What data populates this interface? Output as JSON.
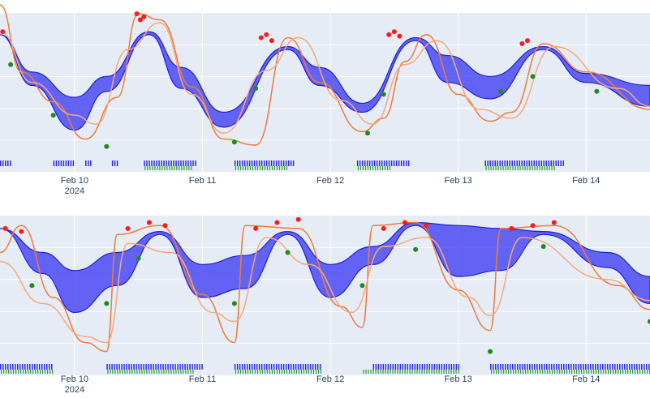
{
  "colors": {
    "plot_bg": "#e5ecf6",
    "grid": "#ffffff",
    "band_fill": "#4b4bf5",
    "band_edge": "#1f1fd6",
    "line_a": "#f07a3c",
    "line_b": "#f8a878",
    "peak_marker": "#ff1a1a",
    "trough_marker": "#1e8a1e",
    "rug_blue": "#2a2ae8",
    "rug_green": "#2ca02c"
  },
  "chart_data": [
    {
      "type": "area",
      "x_axis": {
        "type": "date",
        "range": [
          "2024-02-09T10:00",
          "2024-02-14T12:00"
        ],
        "tick_labels": [
          "Feb 10\n2024",
          "Feb 11",
          "Feb 12",
          "Feb 13",
          "Feb 14"
        ],
        "tick_dates": [
          "2024-02-10",
          "2024-02-11",
          "2024-02-12",
          "2024-02-13",
          "2024-02-14"
        ]
      },
      "y_axis": {
        "range": [
          0,
          1
        ],
        "tick_labels_shown": false
      },
      "grid": true,
      "series": [
        {
          "kind": "band",
          "points": [
            [
              "2024-02-09T10:00",
              0.8,
              0.8
            ],
            [
              "2024-02-09T16:00",
              0.46,
              0.55
            ],
            [
              "2024-02-10T00:00",
              0.16,
              0.38
            ],
            [
              "2024-02-10T06:00",
              0.42,
              0.52
            ],
            [
              "2024-02-10T14:00",
              0.8,
              0.82
            ],
            [
              "2024-02-10T20:00",
              0.44,
              0.58
            ],
            [
              "2024-02-11T04:00",
              0.18,
              0.28
            ],
            [
              "2024-02-11T16:00",
              0.7,
              0.72
            ],
            [
              "2024-02-11T22:00",
              0.46,
              0.58
            ],
            [
              "2024-02-12T06:00",
              0.28,
              0.34
            ],
            [
              "2024-02-12T16:00",
              0.76,
              0.78
            ],
            [
              "2024-02-12T22:00",
              0.48,
              0.66
            ],
            [
              "2024-02-13T06:00",
              0.37,
              0.52
            ],
            [
              "2024-02-13T16:00",
              0.7,
              0.72
            ],
            [
              "2024-02-14T00:00",
              0.48,
              0.54
            ],
            [
              "2024-02-14T12:00",
              0.32,
              0.46
            ]
          ]
        },
        {
          "kind": "line_a",
          "points": [
            [
              "2024-02-09T10:00",
              1.0
            ],
            [
              "2024-02-09T14:00",
              0.55
            ],
            [
              "2024-02-09T20:00",
              0.35
            ],
            [
              "2024-02-10T02:00",
              0.1
            ],
            [
              "2024-02-10T08:00",
              0.38
            ],
            [
              "2024-02-10T12:00",
              0.94
            ],
            [
              "2024-02-10T16:00",
              0.9
            ],
            [
              "2024-02-10T22:00",
              0.45
            ],
            [
              "2024-02-11T04:00",
              0.1
            ],
            [
              "2024-02-11T10:00",
              0.06
            ],
            [
              "2024-02-11T16:00",
              0.78
            ],
            [
              "2024-02-11T22:00",
              0.48
            ],
            [
              "2024-02-12T06:00",
              0.15
            ],
            [
              "2024-02-12T10:00",
              0.24
            ],
            [
              "2024-02-12T14:00",
              0.62
            ],
            [
              "2024-02-12T18:00",
              0.8
            ],
            [
              "2024-02-13T00:00",
              0.4
            ],
            [
              "2024-02-13T06:00",
              0.22
            ],
            [
              "2024-02-13T10:00",
              0.28
            ],
            [
              "2024-02-13T16:00",
              0.74
            ],
            [
              "2024-02-14T00:00",
              0.55
            ],
            [
              "2024-02-14T12:00",
              0.3
            ]
          ]
        },
        {
          "kind": "line_b",
          "points": [
            [
              "2024-02-09T10:00",
              0.82
            ],
            [
              "2024-02-09T16:00",
              0.48
            ],
            [
              "2024-02-10T00:00",
              0.26
            ],
            [
              "2024-02-10T04:00",
              0.2
            ],
            [
              "2024-02-10T10:00",
              0.7
            ],
            [
              "2024-02-10T16:00",
              0.88
            ],
            [
              "2024-02-10T22:00",
              0.4
            ],
            [
              "2024-02-11T04:00",
              0.14
            ],
            [
              "2024-02-11T12:00",
              0.56
            ],
            [
              "2024-02-11T18:00",
              0.78
            ],
            [
              "2024-02-12T02:00",
              0.36
            ],
            [
              "2024-02-12T08:00",
              0.2
            ],
            [
              "2024-02-12T14:00",
              0.6
            ],
            [
              "2024-02-12T20:00",
              0.76
            ],
            [
              "2024-02-13T04:00",
              0.3
            ],
            [
              "2024-02-13T10:00",
              0.24
            ],
            [
              "2024-02-13T18:00",
              0.72
            ],
            [
              "2024-02-14T06:00",
              0.44
            ],
            [
              "2024-02-14T12:00",
              0.32
            ]
          ]
        },
        {
          "kind": "peaks",
          "points": [
            [
              "2024-02-09T10:30",
              0.82
            ],
            [
              "2024-02-10T11:40",
              0.94
            ],
            [
              "2024-02-10T12:20",
              0.9
            ],
            [
              "2024-02-10T13:00",
              0.92
            ],
            [
              "2024-02-11T11:00",
              0.78
            ],
            [
              "2024-02-11T12:00",
              0.8
            ],
            [
              "2024-02-11T13:00",
              0.76
            ],
            [
              "2024-02-12T11:00",
              0.8
            ],
            [
              "2024-02-12T12:00",
              0.82
            ],
            [
              "2024-02-12T13:00",
              0.79
            ],
            [
              "2024-02-13T12:00",
              0.74
            ],
            [
              "2024-02-13T13:00",
              0.76
            ]
          ]
        },
        {
          "kind": "troughs",
          "points": [
            [
              "2024-02-09T12:00",
              0.6
            ],
            [
              "2024-02-09T20:00",
              0.26
            ],
            [
              "2024-02-10T06:00",
              0.05
            ],
            [
              "2024-02-11T06:00",
              0.08
            ],
            [
              "2024-02-11T10:00",
              0.44
            ],
            [
              "2024-02-12T07:00",
              0.14
            ],
            [
              "2024-02-12T10:00",
              0.4
            ],
            [
              "2024-02-13T08:00",
              0.42
            ],
            [
              "2024-02-13T14:00",
              0.52
            ],
            [
              "2024-02-14T02:00",
              0.42
            ]
          ]
        },
        {
          "kind": "rug",
          "blue": [
            [
              "2024-02-09T10:00",
              "2024-02-09T12:00"
            ],
            [
              "2024-02-09T20:00",
              "2024-02-10T00:00"
            ],
            [
              "2024-02-10T02:00",
              "2024-02-10T03:00"
            ],
            [
              "2024-02-10T07:00",
              "2024-02-10T08:00"
            ],
            [
              "2024-02-10T13:00",
              "2024-02-10T23:00"
            ],
            [
              "2024-02-11T06:00",
              "2024-02-11T17:00"
            ],
            [
              "2024-02-12T05:00",
              "2024-02-12T15:00"
            ],
            [
              "2024-02-13T05:00",
              "2024-02-13T20:00"
            ]
          ],
          "green": [
            [
              "2024-02-10T13:00",
              "2024-02-10T22:00"
            ],
            [
              "2024-02-11T06:00",
              "2024-02-11T16:00"
            ],
            [
              "2024-02-12T05:00",
              "2024-02-12T11:00"
            ],
            [
              "2024-02-13T05:00",
              "2024-02-13T18:00"
            ]
          ]
        }
      ]
    },
    {
      "type": "area",
      "x_axis": {
        "type": "date",
        "range": [
          "2024-02-09T10:00",
          "2024-02-14T12:00"
        ],
        "tick_labels": [
          "Feb 10\n2024",
          "Feb 11",
          "Feb 12",
          "Feb 13",
          "Feb 14"
        ],
        "tick_dates": [
          "2024-02-10",
          "2024-02-11",
          "2024-02-12",
          "2024-02-13",
          "2024-02-14"
        ]
      },
      "y_axis": {
        "range": [
          0,
          1
        ],
        "tick_labels_shown": false
      },
      "grid": true,
      "series": [
        {
          "kind": "band",
          "points": [
            [
              "2024-02-09T10:00",
              0.86,
              0.86
            ],
            [
              "2024-02-09T18:00",
              0.56,
              0.7
            ],
            [
              "2024-02-10T00:00",
              0.3,
              0.58
            ],
            [
              "2024-02-10T08:00",
              0.48,
              0.7
            ],
            [
              "2024-02-10T16:00",
              0.82,
              0.84
            ],
            [
              "2024-02-11T00:00",
              0.4,
              0.62
            ],
            [
              "2024-02-11T08:00",
              0.46,
              0.68
            ],
            [
              "2024-02-11T16:00",
              0.82,
              0.84
            ],
            [
              "2024-02-12T00:00",
              0.4,
              0.62
            ],
            [
              "2024-02-12T08:00",
              0.62,
              0.74
            ],
            [
              "2024-02-12T16:00",
              0.88,
              0.9
            ],
            [
              "2024-02-13T00:00",
              0.54,
              0.88
            ],
            [
              "2024-02-13T08:00",
              0.58,
              0.86
            ],
            [
              "2024-02-13T16:00",
              0.82,
              0.84
            ],
            [
              "2024-02-14T04:00",
              0.6,
              0.7
            ],
            [
              "2024-02-14T12:00",
              0.36,
              0.54
            ]
          ]
        },
        {
          "kind": "line_a",
          "points": [
            [
              "2024-02-09T10:00",
              0.7
            ],
            [
              "2024-02-09T14:00",
              0.88
            ],
            [
              "2024-02-09T20:00",
              0.4
            ],
            [
              "2024-02-10T02:00",
              0.1
            ],
            [
              "2024-02-10T06:00",
              0.04
            ],
            [
              "2024-02-10T08:00",
              0.82
            ],
            [
              "2024-02-10T16:00",
              0.88
            ],
            [
              "2024-02-11T00:00",
              0.42
            ],
            [
              "2024-02-11T06:00",
              0.1
            ],
            [
              "2024-02-11T08:00",
              0.88
            ],
            [
              "2024-02-11T18:00",
              0.86
            ],
            [
              "2024-02-12T02:00",
              0.34
            ],
            [
              "2024-02-12T06:00",
              0.2
            ],
            [
              "2024-02-12T08:00",
              0.88
            ],
            [
              "2024-02-12T16:00",
              0.9
            ],
            [
              "2024-02-13T00:00",
              0.45
            ],
            [
              "2024-02-13T06:00",
              0.18
            ],
            [
              "2024-02-13T08:00",
              0.86
            ],
            [
              "2024-02-13T18:00",
              0.88
            ],
            [
              "2024-02-14T06:00",
              0.48
            ],
            [
              "2024-02-14T12:00",
              0.32
            ]
          ]
        },
        {
          "kind": "line_b",
          "points": [
            [
              "2024-02-09T10:00",
              0.64
            ],
            [
              "2024-02-09T18:00",
              0.36
            ],
            [
              "2024-02-10T02:00",
              0.14
            ],
            [
              "2024-02-10T06:00",
              0.1
            ],
            [
              "2024-02-10T10:00",
              0.76
            ],
            [
              "2024-02-10T18:00",
              0.7
            ],
            [
              "2024-02-11T02:00",
              0.3
            ],
            [
              "2024-02-11T06:00",
              0.24
            ],
            [
              "2024-02-11T12:00",
              0.8
            ],
            [
              "2024-02-11T20:00",
              0.62
            ],
            [
              "2024-02-12T04:00",
              0.3
            ],
            [
              "2024-02-12T10:00",
              0.74
            ],
            [
              "2024-02-12T18:00",
              0.8
            ],
            [
              "2024-02-13T02:00",
              0.4
            ],
            [
              "2024-02-13T06:00",
              0.28
            ],
            [
              "2024-02-13T12:00",
              0.8
            ],
            [
              "2024-02-14T04:00",
              0.52
            ],
            [
              "2024-02-14T12:00",
              0.38
            ]
          ]
        },
        {
          "kind": "peaks",
          "points": [
            [
              "2024-02-09T11:00",
              0.86
            ],
            [
              "2024-02-09T14:00",
              0.84
            ],
            [
              "2024-02-10T10:00",
              0.86
            ],
            [
              "2024-02-10T14:00",
              0.9
            ],
            [
              "2024-02-10T17:00",
              0.88
            ],
            [
              "2024-02-11T10:00",
              0.86
            ],
            [
              "2024-02-11T14:00",
              0.9
            ],
            [
              "2024-02-11T18:00",
              0.92
            ],
            [
              "2024-02-12T10:00",
              0.86
            ],
            [
              "2024-02-12T14:00",
              0.9
            ],
            [
              "2024-02-12T18:00",
              0.88
            ],
            [
              "2024-02-13T10:00",
              0.86
            ],
            [
              "2024-02-13T14:00",
              0.88
            ],
            [
              "2024-02-13T18:00",
              0.9
            ]
          ]
        },
        {
          "kind": "troughs",
          "points": [
            [
              "2024-02-09T16:00",
              0.48
            ],
            [
              "2024-02-10T06:00",
              0.36
            ],
            [
              "2024-02-10T12:00",
              0.66
            ],
            [
              "2024-02-11T06:00",
              0.36
            ],
            [
              "2024-02-11T16:00",
              0.7
            ],
            [
              "2024-02-12T06:00",
              0.48
            ],
            [
              "2024-02-12T16:00",
              0.72
            ],
            [
              "2024-02-13T06:00",
              0.04
            ],
            [
              "2024-02-13T16:00",
              0.74
            ],
            [
              "2024-02-14T12:00",
              0.24
            ]
          ]
        },
        {
          "kind": "rug",
          "blue": [
            [
              "2024-02-09T10:00",
              "2024-02-09T20:00"
            ],
            [
              "2024-02-10T06:00",
              "2024-02-11T00:00"
            ],
            [
              "2024-02-11T06:00",
              "2024-02-11T22:00"
            ],
            [
              "2024-02-12T08:00",
              "2024-02-13T00:00"
            ],
            [
              "2024-02-13T06:00",
              "2024-02-14T12:00"
            ]
          ],
          "green": [
            [
              "2024-02-09T10:00",
              "2024-02-09T20:00"
            ],
            [
              "2024-02-10T06:00",
              "2024-02-10T22:00"
            ],
            [
              "2024-02-11T06:00",
              "2024-02-11T22:00"
            ],
            [
              "2024-02-12T06:00",
              "2024-02-13T00:00"
            ],
            [
              "2024-02-13T06:00",
              "2024-02-14T12:00"
            ]
          ]
        }
      ]
    }
  ]
}
